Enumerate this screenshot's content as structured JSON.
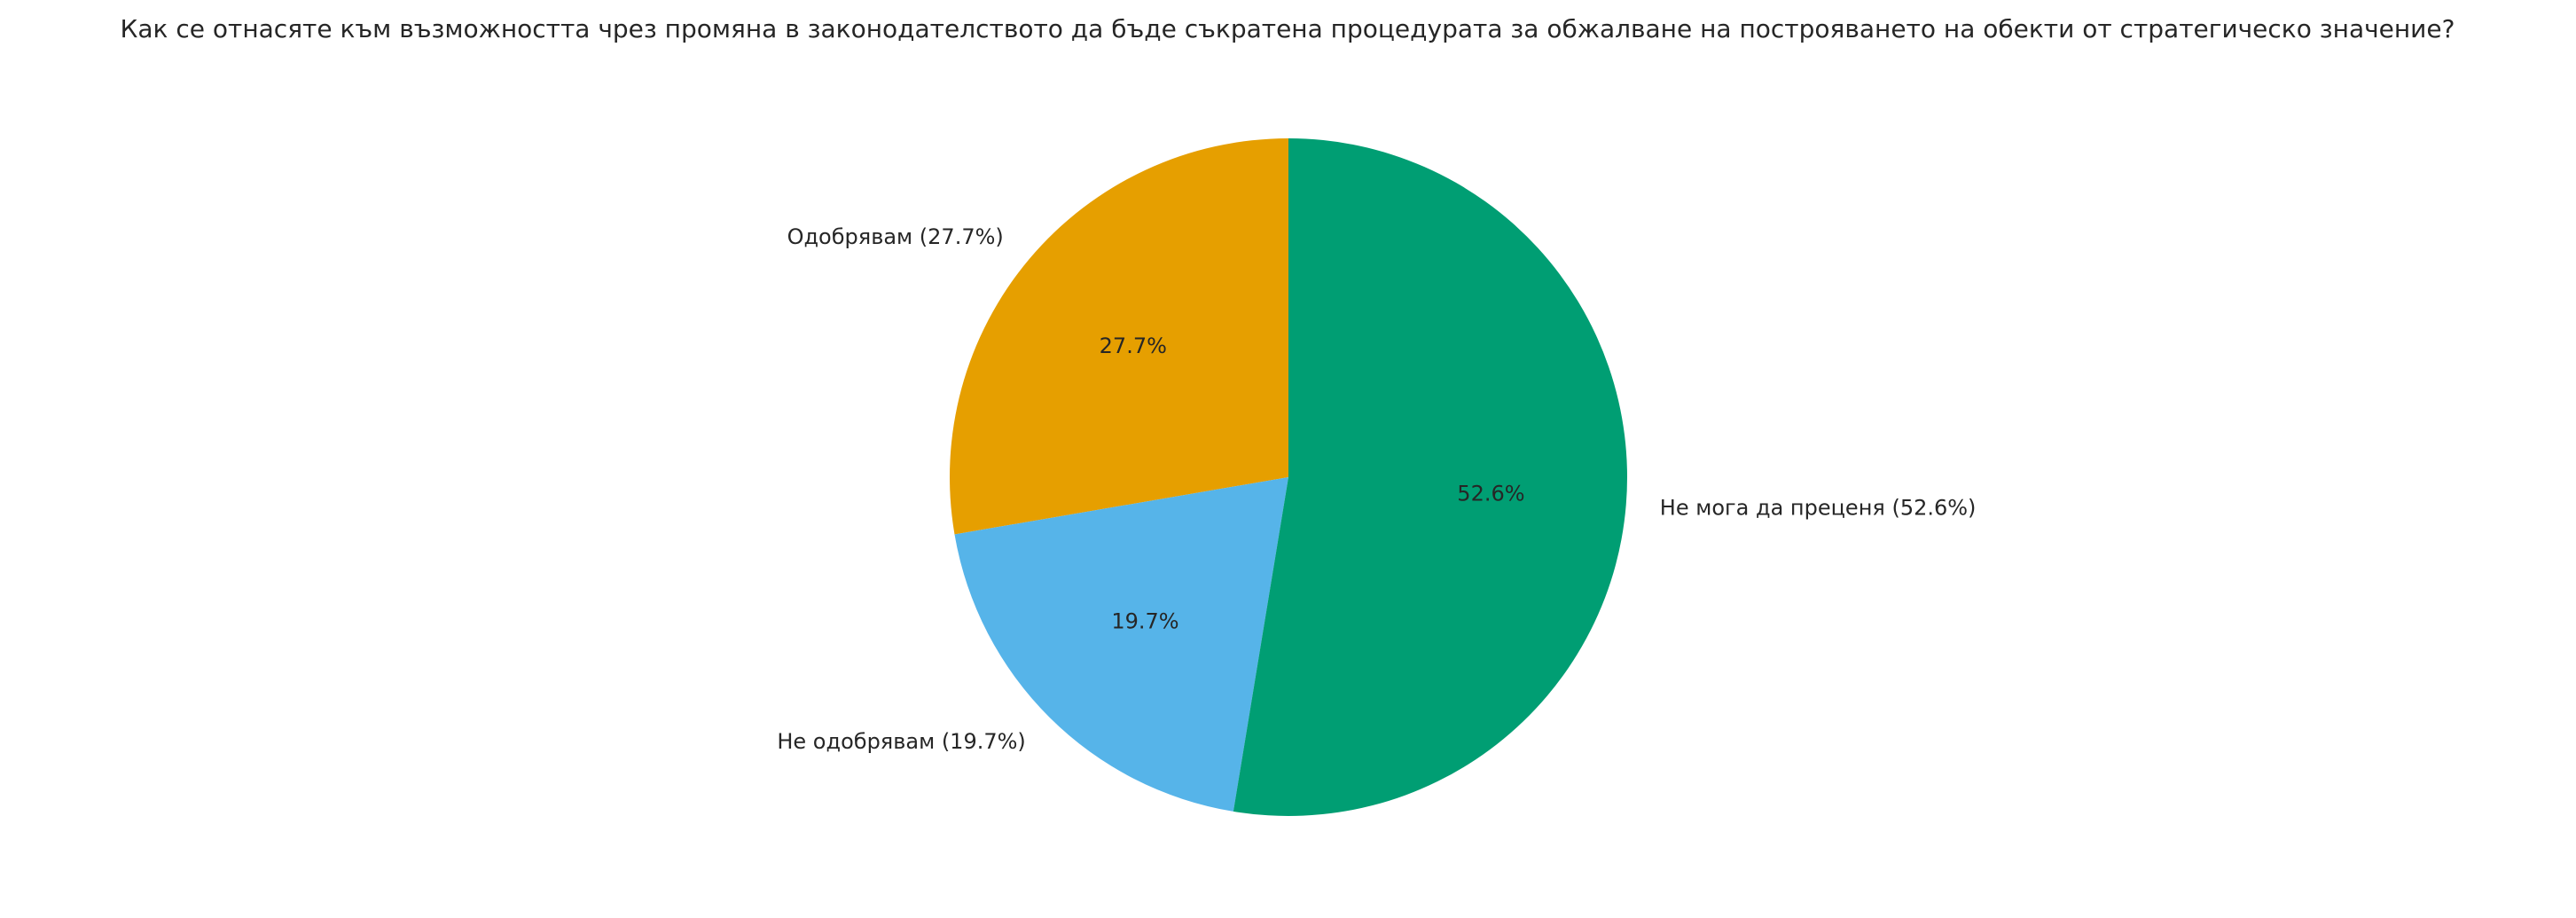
{
  "chart_data": {
    "type": "pie",
    "title": "Как се отнасяте към възможността чрез промяна в законодателството да бъде съкратена процедурата за обжалване на построяването на обекти от стратегическо значение?",
    "start_angle_deg": 90,
    "direction": "counterclockwise",
    "slices": [
      {
        "label": "Одобрявам (27.7%)",
        "value": 27.7,
        "pct_label": "27.7%",
        "color": "#E69F00"
      },
      {
        "label": "Не одобрявам (19.7%)",
        "value": 19.7,
        "pct_label": "19.7%",
        "color": "#56B4E9"
      },
      {
        "label": "Не мога да преценя (52.6%)",
        "value": 52.6,
        "pct_label": "52.6%",
        "color": "#009E73"
      }
    ]
  }
}
